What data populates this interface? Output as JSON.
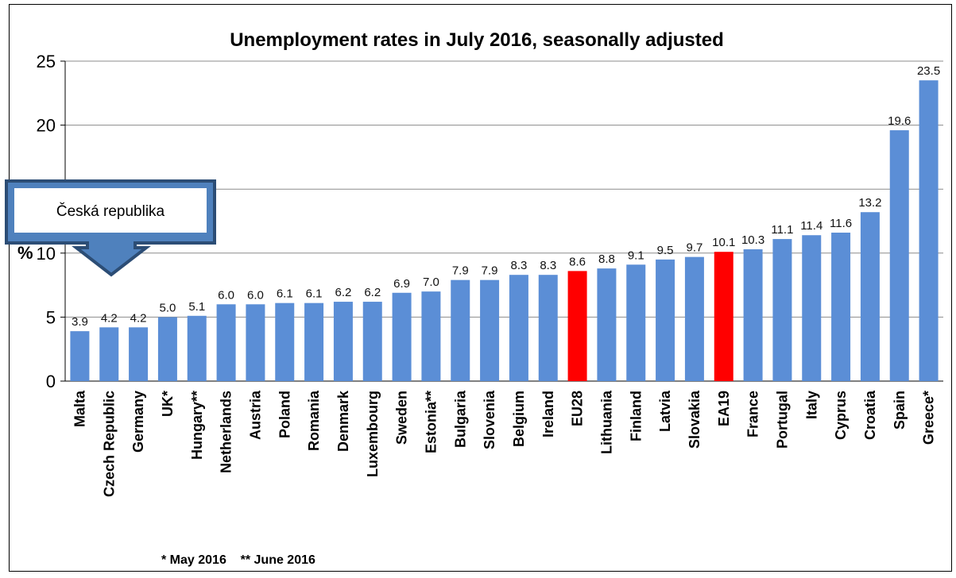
{
  "chart_data": {
    "type": "bar",
    "title": "Unemployment rates in July 2016, seasonally adjusted",
    "ylabel": "%",
    "xlabel": "",
    "ylim": [
      0,
      25
    ],
    "yticks": [
      0,
      5,
      10,
      15,
      20,
      25
    ],
    "grid": true,
    "categories": [
      "Malta",
      "Czech Republic",
      "Germany",
      "UK*",
      "Hungary**",
      "Netherlands",
      "Austria",
      "Poland",
      "Romania",
      "Denmark",
      "Luxembourg",
      "Sweden",
      "Estonia**",
      "Bulgaria",
      "Slovenia",
      "Belgium",
      "Ireland",
      "EU28",
      "Lithuania",
      "Finland",
      "Latvia",
      "Slovakia",
      "EA19",
      "France",
      "Portugal",
      "Italy",
      "Cyprus",
      "Croatia",
      "Spain",
      "Greece*"
    ],
    "values": [
      3.9,
      4.2,
      4.2,
      5.0,
      5.1,
      6.0,
      6.0,
      6.1,
      6.1,
      6.2,
      6.2,
      6.9,
      7.0,
      7.9,
      7.9,
      8.3,
      8.3,
      8.6,
      8.8,
      9.1,
      9.5,
      9.7,
      10.1,
      10.3,
      11.1,
      11.4,
      11.6,
      13.2,
      19.6,
      23.5
    ],
    "value_labels": [
      "3.9",
      "4.2",
      "4.2",
      "5.0",
      "5.1",
      "6.0",
      "6.0",
      "6.1",
      "6.1",
      "6.2",
      "6.2",
      "6.9",
      "7.0",
      "7.9",
      "7.9",
      "8.3",
      "8.3",
      "8.6",
      "8.8",
      "9.1",
      "9.5",
      "9.7",
      "10.1",
      "10.3",
      "11.1",
      "11.4",
      "11.6",
      "13.2",
      "19.6",
      "23.5"
    ],
    "highlighted": [
      "EU28",
      "EA19"
    ],
    "colors": {
      "bar": "#5B8ED6",
      "highlight": "#FF0000",
      "grid": "#8C8C8C"
    },
    "footnote": "* May 2016    ** June 2016"
  },
  "callout": {
    "text": "Česká republika",
    "fill": "#4F81BD",
    "border": "#2C4D75",
    "icon": "down-arrow-callout"
  }
}
